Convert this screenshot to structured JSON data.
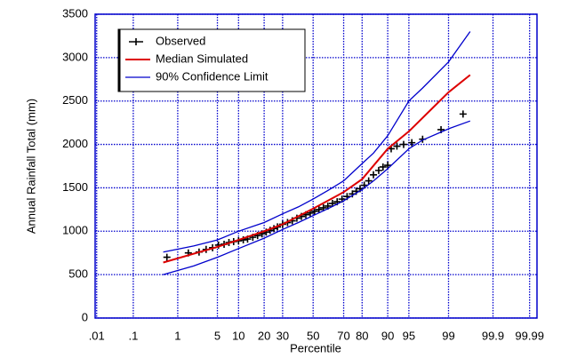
{
  "chart_data": {
    "type": "probability",
    "x_label": "Percentile",
    "y_label": "Annual Rainfall Total (mm)",
    "xscale": "normal-probability",
    "xlim": [
      0.009,
      99.994
    ],
    "xticks": [
      {
        "value": 0.01,
        "label": ".01"
      },
      {
        "value": 0.1,
        "label": ".1"
      },
      1,
      5,
      10,
      20,
      30,
      50,
      70,
      80,
      90,
      95,
      99,
      99.9,
      99.99
    ],
    "ylim": [
      0,
      3500
    ],
    "yticks": [
      0,
      500,
      1000,
      1500,
      2000,
      2500,
      3000,
      3500
    ],
    "grid": true,
    "grid_color": "#0000cc",
    "legend_position": "upper-left",
    "series": [
      {
        "name": "Observed",
        "color": "#000000",
        "marker": "plus",
        "x": [
          0.6,
          1.6,
          2.5,
          3.3,
          4.2,
          5.2,
          6.3,
          7.4,
          8.6,
          10,
          11.5,
          13,
          15,
          17,
          19,
          21,
          23,
          25,
          27,
          30,
          33,
          36,
          39,
          42,
          45,
          48,
          51,
          54,
          57,
          60,
          63,
          66,
          69,
          72,
          75,
          77,
          79,
          81,
          83,
          85,
          87,
          88.5,
          90,
          91,
          92.5,
          94,
          95.5,
          97,
          98.6,
          99.5
        ],
        "values": [
          700,
          750,
          760,
          790,
          810,
          840,
          850,
          870,
          880,
          890,
          900,
          910,
          930,
          950,
          970,
          990,
          1010,
          1030,
          1050,
          1080,
          1100,
          1120,
          1150,
          1170,
          1190,
          1210,
          1230,
          1250,
          1270,
          1290,
          1320,
          1340,
          1370,
          1400,
          1430,
          1460,
          1490,
          1530,
          1580,
          1650,
          1700,
          1740,
          1760,
          1950,
          1980,
          2000,
          2020,
          2060,
          2170,
          2350
        ]
      },
      {
        "name": "Median Simulated",
        "color": "#dd0000",
        "marker": "line",
        "x": [
          0.5,
          5,
          10,
          20,
          30,
          50,
          70,
          80,
          90,
          95,
          99,
          99.65
        ],
        "values": [
          640,
          820,
          900,
          1000,
          1080,
          1260,
          1450,
          1600,
          1950,
          2150,
          2600,
          2800
        ]
      },
      {
        "name": "90% Confidence Limit",
        "color": "#0000cc",
        "marker": "line",
        "x": [
          0.5,
          2,
          5,
          10,
          20,
          30,
          40,
          50,
          60,
          70,
          80,
          85,
          90,
          95,
          97,
          99,
          99.65
        ],
        "values": [
          760,
          830,
          900,
          1000,
          1100,
          1200,
          1280,
          1370,
          1470,
          1580,
          1780,
          1900,
          2100,
          2500,
          2650,
          2950,
          3300
        ]
      },
      {
        "color": "#0000cc",
        "marker": "line",
        "x": [
          0.5,
          2,
          5,
          10,
          20,
          30,
          40,
          50,
          60,
          70,
          80,
          85,
          90,
          95,
          97,
          99,
          99.65
        ],
        "values": [
          500,
          600,
          700,
          800,
          920,
          1020,
          1100,
          1180,
          1260,
          1350,
          1480,
          1580,
          1720,
          1950,
          2050,
          2180,
          2270
        ]
      }
    ]
  }
}
